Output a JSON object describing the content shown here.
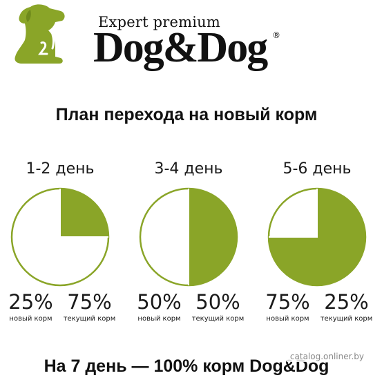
{
  "brand": {
    "subtitle": "Expert premium",
    "name": "Dog&Dog",
    "registered": "®",
    "accent_color": "#8aa528",
    "logo_icon": "dog-silhouette-icon"
  },
  "title": "План перехода на новый корм",
  "stages": [
    {
      "label": "1-2 день",
      "new_pct": "25%",
      "new_label": "новый корм",
      "current_pct": "75%",
      "current_label": "текущий корм",
      "new_fraction": 0.25
    },
    {
      "label": "3-4 день",
      "new_pct": "50%",
      "new_label": "новый корм",
      "current_pct": "50%",
      "current_label": "текущий корм",
      "new_fraction": 0.5
    },
    {
      "label": "5-6 день",
      "new_pct": "75%",
      "new_label": "новый корм",
      "current_pct": "25%",
      "current_label": "текущий корм",
      "new_fraction": 0.75
    }
  ],
  "footer": "На 7 день — 100% корм Dog&Dog",
  "watermark": "catalog.onliner.by"
}
